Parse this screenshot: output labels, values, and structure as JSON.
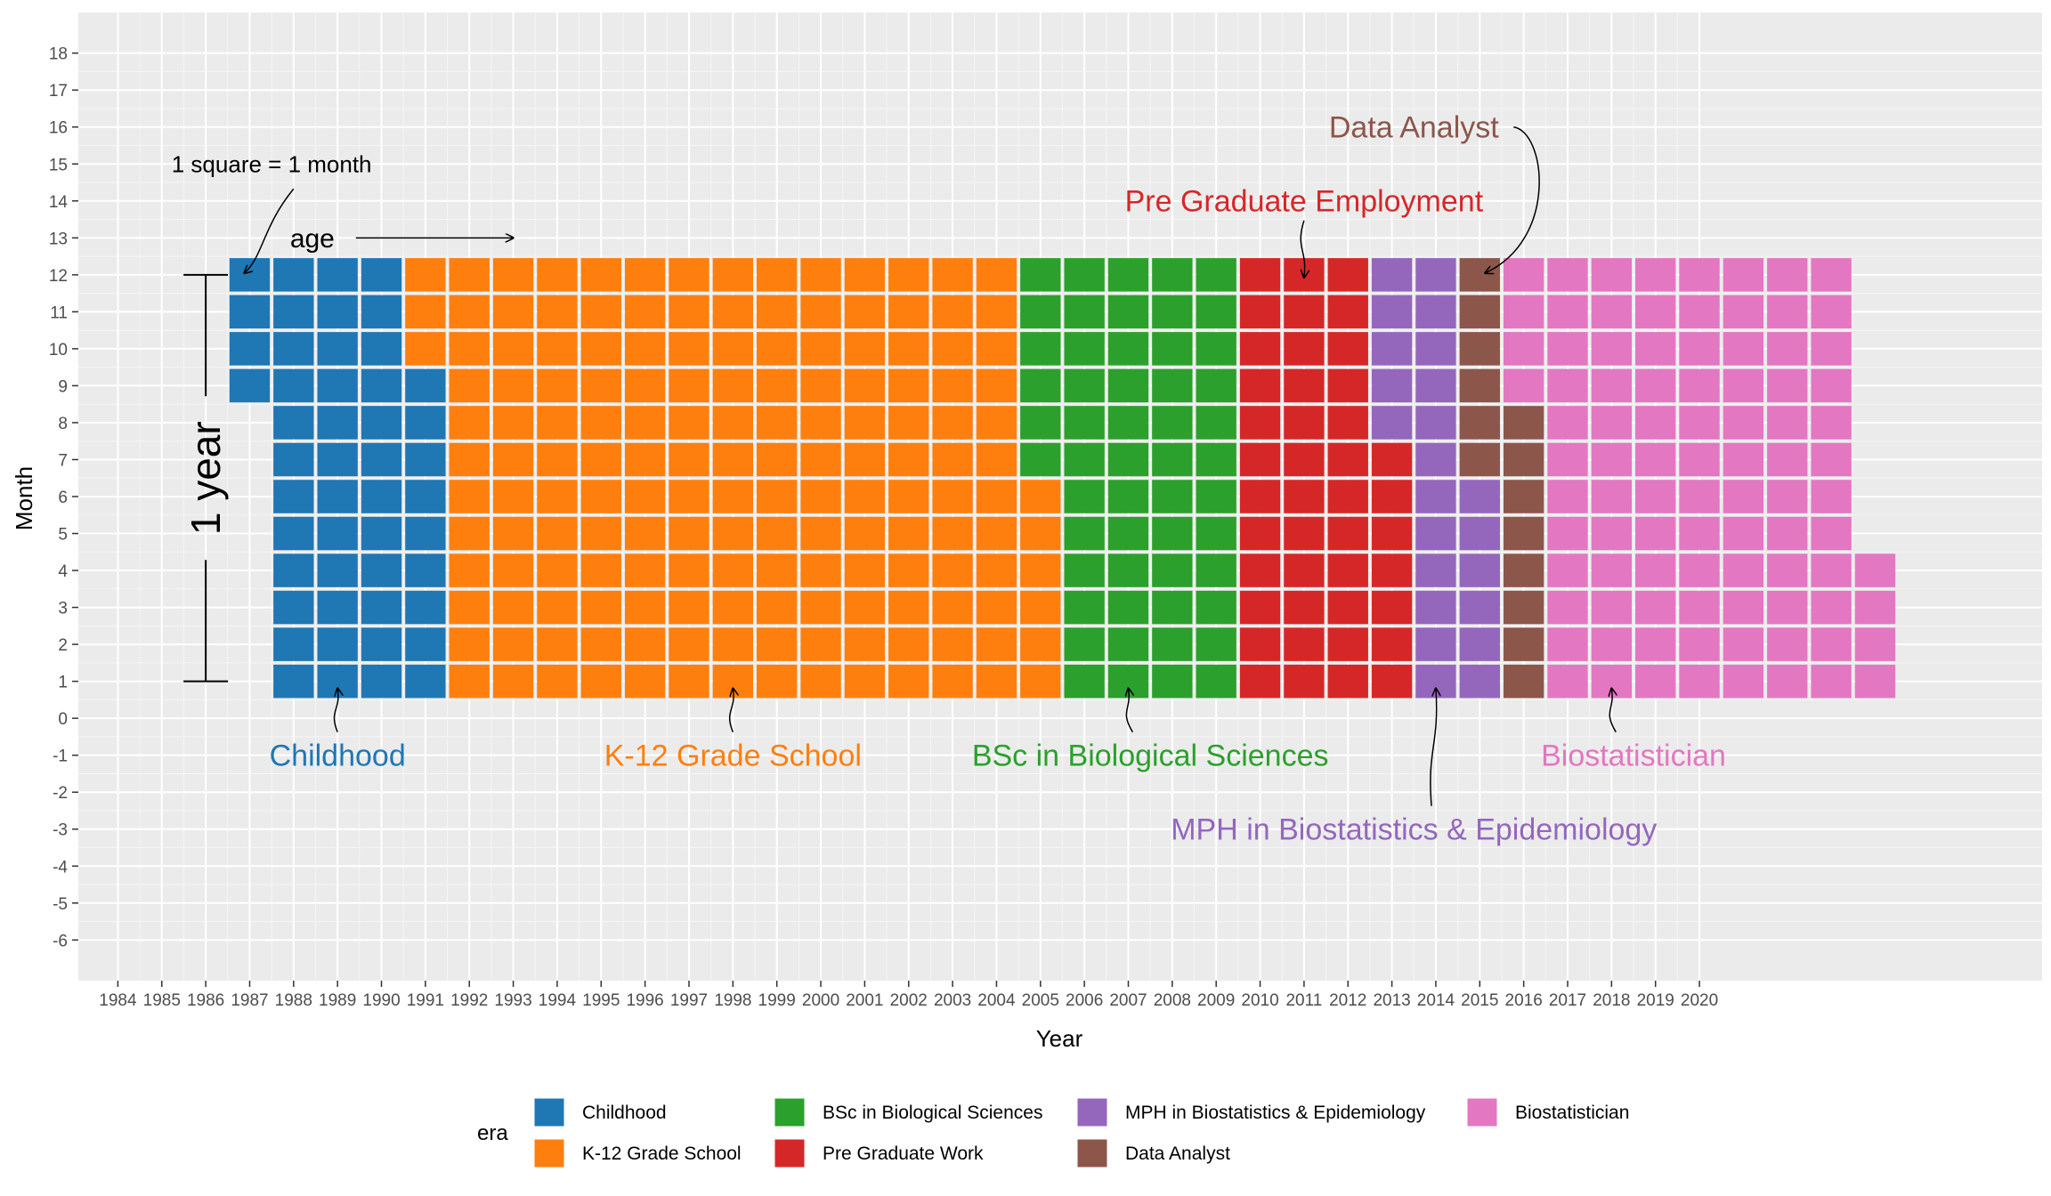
{
  "chart_data": {
    "type": "heatmap",
    "title": "",
    "xlabel": "Year",
    "ylabel": "Month",
    "x_tick_labels": [
      "1984",
      "1985",
      "1986",
      "1987",
      "1988",
      "1989",
      "1990",
      "1991",
      "1992",
      "1993",
      "1994",
      "1995",
      "1996",
      "1997",
      "1998",
      "1999",
      "2000",
      "2001",
      "2002",
      "2003",
      "2004",
      "2005",
      "2006",
      "2007",
      "2008",
      "2009",
      "2010",
      "2011",
      "2012",
      "2013",
      "2014",
      "2015",
      "2016",
      "2017",
      "2018",
      "2019",
      "2020"
    ],
    "y_tick_labels": [
      "-6",
      "-5",
      "-4",
      "-3",
      "-2",
      "-1",
      "0",
      "1",
      "2",
      "3",
      "4",
      "5",
      "6",
      "7",
      "8",
      "9",
      "10",
      "11",
      "12",
      "13",
      "14",
      "15",
      "16",
      "17",
      "18"
    ],
    "xlim": [
      1983.1,
      2027.8
    ],
    "ylim": [
      -7.1,
      19.1
    ],
    "grid": true,
    "legend_title": "era",
    "legend_position": "bottom",
    "series": [
      {
        "name": "Childhood",
        "color": "#1F77B4",
        "ranges": [
          [
            1987,
            9,
            12
          ],
          [
            1988,
            1,
            12
          ],
          [
            1989,
            1,
            12
          ],
          [
            1990,
            1,
            12
          ],
          [
            1991,
            1,
            9
          ]
        ]
      },
      {
        "name": "K-12 Grade School",
        "color": "#FF7F0E",
        "ranges": [
          [
            1991,
            10,
            12
          ],
          [
            1992,
            1,
            12
          ],
          [
            1993,
            1,
            12
          ],
          [
            1994,
            1,
            12
          ],
          [
            1995,
            1,
            12
          ],
          [
            1996,
            1,
            12
          ],
          [
            1997,
            1,
            12
          ],
          [
            1998,
            1,
            12
          ],
          [
            1999,
            1,
            12
          ],
          [
            2000,
            1,
            12
          ],
          [
            2001,
            1,
            12
          ],
          [
            2002,
            1,
            12
          ],
          [
            2003,
            1,
            12
          ],
          [
            2004,
            1,
            12
          ],
          [
            2005,
            1,
            6
          ]
        ]
      },
      {
        "name": "BSc in Biological Sciences",
        "color": "#2CA02C",
        "ranges": [
          [
            2005,
            7,
            12
          ],
          [
            2006,
            1,
            12
          ],
          [
            2007,
            1,
            12
          ],
          [
            2008,
            1,
            12
          ],
          [
            2009,
            1,
            12
          ]
        ]
      },
      {
        "name": "Pre Graduate Work",
        "color": "#D62728",
        "ranges": [
          [
            2010,
            1,
            12
          ],
          [
            2011,
            1,
            12
          ],
          [
            2012,
            1,
            12
          ],
          [
            2013,
            1,
            7
          ]
        ]
      },
      {
        "name": "MPH in Biostatistics & Epidemiology",
        "color": "#9467BD",
        "ranges": [
          [
            2013,
            8,
            12
          ],
          [
            2014,
            1,
            12
          ],
          [
            2015,
            1,
            6
          ]
        ]
      },
      {
        "name": "Data Analyst",
        "color": "#8C564B",
        "ranges": [
          [
            2015,
            7,
            12
          ],
          [
            2016,
            1,
            8
          ]
        ]
      },
      {
        "name": "Biostatistician",
        "color": "#E377C2",
        "ranges": [
          [
            2016,
            9,
            12
          ],
          [
            2017,
            1,
            12
          ],
          [
            2018,
            1,
            12
          ],
          [
            2019,
            1,
            12
          ],
          [
            2020,
            1,
            12
          ],
          [
            2021,
            1,
            12
          ],
          [
            2022,
            1,
            12
          ],
          [
            2023,
            1,
            12
          ],
          [
            2024,
            1,
            4
          ]
        ]
      }
    ],
    "annotations": [
      {
        "text": "Childhood",
        "color": "#1F77B4",
        "x": 1989,
        "y": -1,
        "arrow_to": [
          1989,
          1
        ]
      },
      {
        "text": "K-12 Grade School",
        "color": "#FF7F0E",
        "x": 1998,
        "y": -1,
        "arrow_to": [
          1998,
          1
        ]
      },
      {
        "text": "BSc in Biological Sciences",
        "color": "#2CA02C",
        "x": 2007.5,
        "y": -1,
        "arrow_to": [
          2007,
          1
        ]
      },
      {
        "text": "Biostatistician",
        "color": "#E377C2",
        "x": 2018.5,
        "y": -1,
        "arrow_to": [
          2018,
          1
        ]
      },
      {
        "text": "MPH in Biostatistics & Epidemiology",
        "color": "#9467BD",
        "x": 2013.5,
        "y": -3,
        "arrow_to": [
          2014,
          1
        ]
      },
      {
        "text": "Pre Graduate Employment",
        "color": "#D62728",
        "x": 2011,
        "y": 14,
        "arrow_to": [
          2011,
          12
        ]
      },
      {
        "text": "Data Analyst",
        "color": "#8C564B",
        "x": 2013.5,
        "y": 16,
        "arrow_to": [
          2015,
          12
        ]
      },
      {
        "text": "1 square = 1 month",
        "color": "#000000",
        "x": 1987.5,
        "y": 15,
        "arrow_to": [
          1987,
          12
        ]
      },
      {
        "text": "age",
        "color": "#000000",
        "x": 1988,
        "y": 13,
        "arrow_to": [
          1993,
          13
        ]
      }
    ],
    "bracket": {
      "text": "1 year",
      "x": 1986,
      "y_from": 1,
      "y_to": 12
    }
  }
}
